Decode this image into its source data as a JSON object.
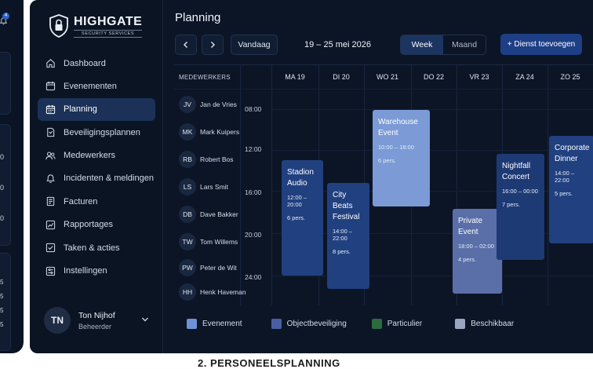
{
  "peek": {
    "badge": "4",
    "digits": [
      "0",
      "0",
      "0"
    ],
    "small": [
      "5",
      "5",
      "5",
      "5"
    ]
  },
  "brand": {
    "name": "HIGHGATE",
    "tagline": "SECURITY SERVICES"
  },
  "sidebar": {
    "items": [
      {
        "label": "Dashboard",
        "icon": "home-icon"
      },
      {
        "label": "Evenementen",
        "icon": "calendar-icon"
      },
      {
        "label": "Planning",
        "icon": "calendar-icon",
        "active": true
      },
      {
        "label": "Beveiligingsplannen",
        "icon": "document-icon"
      },
      {
        "label": "Medewerkers",
        "icon": "users-icon"
      },
      {
        "label": "Incidenten & meldingen",
        "icon": "alert-icon"
      },
      {
        "label": "Facturen",
        "icon": "invoice-icon"
      },
      {
        "label": "Rapportages",
        "icon": "chart-icon"
      },
      {
        "label": "Taken & acties",
        "icon": "checklist-icon"
      },
      {
        "label": "Instellingen",
        "icon": "settings-icon"
      }
    ]
  },
  "user": {
    "initials": "TN",
    "name": "Ton Nijhof",
    "role": "Beheerder"
  },
  "header": {
    "title": "Planning",
    "today": "Vandaag",
    "range": "19 – 25 mei 2026",
    "views": [
      "Week",
      "Maand"
    ],
    "add": "+ Dienst toevoegen"
  },
  "grid": {
    "employees_header": "MEDEWERKERS",
    "days": [
      "MA 19",
      "DI 20",
      "WO 21",
      "DO 22",
      "VR 23",
      "ZA 24",
      "ZO 25"
    ],
    "times": [
      "08:00",
      "12:00",
      "16:00",
      "20:00",
      "24:00"
    ],
    "employees": [
      {
        "initials": "JV",
        "name": "Jan de Vries"
      },
      {
        "initials": "MK",
        "name": "Mark Kuipers"
      },
      {
        "initials": "RB",
        "name": "Robert Bos"
      },
      {
        "initials": "LS",
        "name": "Lars Smit"
      },
      {
        "initials": "DB",
        "name": "Dave Bakker"
      },
      {
        "initials": "TW",
        "name": "Tom Willems"
      },
      {
        "initials": "PW",
        "name": "Peter de Wit"
      },
      {
        "initials": "HH",
        "name": "Henk Haveman"
      }
    ],
    "events": [
      {
        "title": "Stadion Audio",
        "hours": "12:00 – 20:00",
        "people": "6 pers.",
        "color": "#21407f"
      },
      {
        "title": "City Beats Festival",
        "hours": "14:00 – 22:00",
        "people": "8 pers.",
        "color": "#21407f"
      },
      {
        "title": "Warehouse Event",
        "hours": "10:00 – 18:00",
        "people": "6 pers.",
        "color": "#7b9ad6"
      },
      {
        "title": "Private Event",
        "hours": "18:00 – 02:00",
        "people": "4 pers.",
        "color": "#5a6ea8"
      },
      {
        "title": "Nightfall Concert",
        "hours": "16:00 – 00:00",
        "people": "7 pers.",
        "color": "#1e3a75"
      },
      {
        "title": "Corporate Dinner",
        "hours": "14:00 – 22:00",
        "people": "5 pers.",
        "color": "#21407f"
      }
    ]
  },
  "legend": [
    {
      "label": "Evenement",
      "color": "#6f92d6"
    },
    {
      "label": "Objectbeveiliging",
      "color": "#4a5ea3"
    },
    {
      "label": "Particulier",
      "color": "#2c6b3e"
    },
    {
      "label": "Beschikbaar",
      "color": "#9aa6bf"
    }
  ],
  "caption": "2. PERSONEELSPLANNING"
}
